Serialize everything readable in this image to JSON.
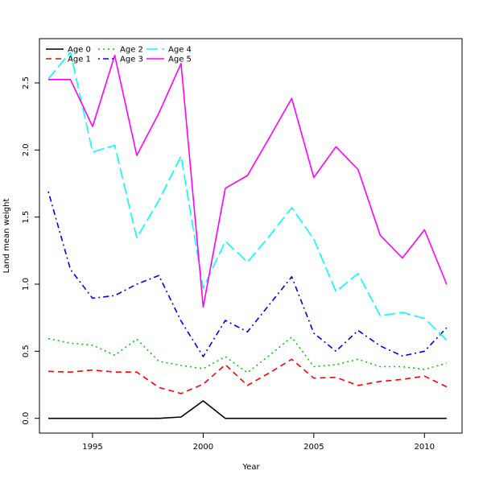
{
  "chart_data": {
    "type": "line",
    "title": "",
    "xlabel": "Year",
    "ylabel": "Land mean weight",
    "xlim": [
      1992.6,
      2011.7
    ],
    "ylim": [
      -0.11,
      2.83
    ],
    "x_ticks": [
      1995,
      2000,
      2005,
      2010
    ],
    "y_ticks": [
      0.0,
      0.5,
      1.0,
      1.5,
      2.0,
      2.5
    ],
    "x_tick_labels": [
      "1995",
      "2000",
      "2005",
      "2010"
    ],
    "y_tick_labels": [
      "0.0",
      "0.5",
      "1.0",
      "1.5",
      "2.0",
      "2.5"
    ],
    "grid": false,
    "legend": "top-left",
    "x": [
      1993,
      1994,
      1995,
      1996,
      1997,
      1998,
      1999,
      2000,
      2001,
      2002,
      2003,
      2004,
      2005,
      2006,
      2007,
      2008,
      2009,
      2010,
      2011
    ],
    "series": [
      {
        "name": "Age 0",
        "color": "#000000",
        "dash": "solid",
        "values": [
          0.0,
          0.0,
          0.0,
          0.0,
          0.0,
          0.0,
          0.01,
          0.13,
          0.0,
          0.0,
          0.0,
          0.0,
          0.0,
          0.0,
          0.0,
          0.0,
          0.0,
          0.0,
          0.0
        ]
      },
      {
        "name": "Age 1",
        "color": "#ff0000",
        "dash": "dashed",
        "values": [
          0.35,
          0.345,
          0.36,
          0.345,
          0.345,
          0.23,
          0.185,
          0.255,
          0.4,
          0.245,
          0.34,
          0.44,
          0.3,
          0.305,
          0.245,
          0.275,
          0.29,
          0.315,
          0.235
        ]
      },
      {
        "name": "Age 2",
        "color": "#00cd00",
        "dash": "dotted",
        "values": [
          0.595,
          0.56,
          0.545,
          0.47,
          0.59,
          0.425,
          0.395,
          0.37,
          0.46,
          0.34,
          0.47,
          0.605,
          0.385,
          0.4,
          0.44,
          0.385,
          0.385,
          0.365,
          0.41
        ]
      },
      {
        "name": "Age 3",
        "color": "#0000ff",
        "dash": "dotdash",
        "values": [
          1.69,
          1.11,
          0.895,
          0.915,
          1.0,
          1.065,
          0.725,
          0.46,
          0.73,
          0.645,
          0.85,
          1.055,
          0.635,
          0.5,
          0.655,
          0.54,
          0.465,
          0.5,
          0.675
        ]
      },
      {
        "name": "Age 4",
        "color": "#00ffff",
        "dash": "longdash",
        "values": [
          2.53,
          2.73,
          1.985,
          2.035,
          1.345,
          1.625,
          1.955,
          0.97,
          1.32,
          1.165,
          1.36,
          1.57,
          1.335,
          0.945,
          1.08,
          0.765,
          0.79,
          0.745,
          0.585
        ]
      },
      {
        "name": "Age 5",
        "color": "#ff00ff",
        "dash": "solid",
        "values": [
          2.525,
          2.525,
          2.175,
          2.705,
          1.96,
          2.275,
          2.645,
          0.83,
          1.715,
          1.81,
          2.095,
          2.385,
          1.795,
          2.025,
          1.855,
          1.365,
          1.195,
          1.405,
          1.0
        ]
      }
    ]
  }
}
